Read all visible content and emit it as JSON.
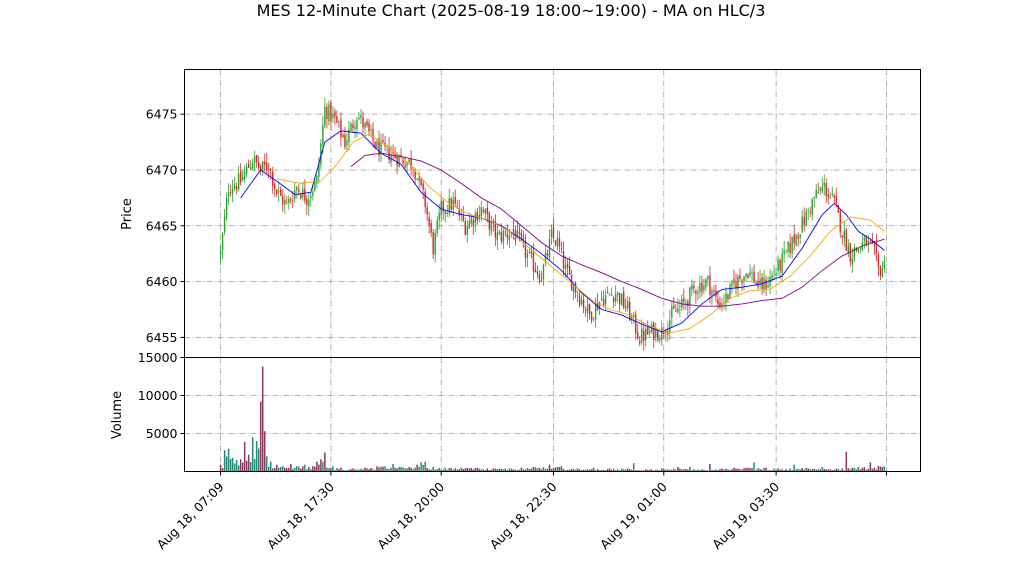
{
  "chart_data": {
    "type": "candlestick",
    "title": "MES 12-Minute Chart (2025-08-19 18:00~19:00) - MA on HLC/3",
    "price_panel": {
      "ylabel": "Price",
      "yticks": [
        6455,
        6460,
        6465,
        6470,
        6475
      ],
      "ylim": [
        6453.2,
        6479.0
      ],
      "up_color": "#2ca02c",
      "down_color": "#d62728",
      "candles_close_path": [
        [
          0,
          6462.5
        ],
        [
          4,
          6468.5
        ],
        [
          10,
          6469.0
        ],
        [
          16,
          6471.0
        ],
        [
          20,
          6470.0
        ],
        [
          24,
          6470.5
        ],
        [
          28,
          6468.0
        ],
        [
          33,
          6466.8
        ],
        [
          38,
          6468.5
        ],
        [
          43,
          6467.5
        ],
        [
          48,
          6469.0
        ],
        [
          52,
          6475.5
        ],
        [
          57,
          6474.5
        ],
        [
          62,
          6472.5
        ],
        [
          68,
          6475.0
        ],
        [
          73,
          6473.5
        ],
        [
          78,
          6472.0
        ],
        [
          84,
          6471.5
        ],
        [
          90,
          6471.0
        ],
        [
          96,
          6470.5
        ],
        [
          102,
          6467.0
        ],
        [
          106,
          6463.0
        ],
        [
          110,
          6466.5
        ],
        [
          116,
          6467.0
        ],
        [
          122,
          6465.0
        ],
        [
          130,
          6466.5
        ],
        [
          138,
          6464.0
        ],
        [
          146,
          6464.5
        ],
        [
          154,
          6462.0
        ],
        [
          160,
          6460.5
        ],
        [
          165,
          6464.0
        ],
        [
          168,
          6463.5
        ],
        [
          172,
          6461.0
        ],
        [
          178,
          6459.0
        ],
        [
          184,
          6457.0
        ],
        [
          190,
          6458.5
        ],
        [
          197,
          6459.0
        ],
        [
          203,
          6457.5
        ],
        [
          209,
          6455.0
        ],
        [
          215,
          6455.5
        ],
        [
          220,
          6455.5
        ],
        [
          225,
          6457.0
        ],
        [
          231,
          6458.0
        ],
        [
          237,
          6459.5
        ],
        [
          243,
          6460.0
        ],
        [
          248,
          6458.0
        ],
        [
          252,
          6458.5
        ],
        [
          257,
          6460.0
        ],
        [
          263,
          6461.0
        ],
        [
          269,
          6459.5
        ],
        [
          273,
          6460.0
        ],
        [
          279,
          6461.5
        ],
        [
          285,
          6463.5
        ],
        [
          291,
          6465.5
        ],
        [
          296,
          6467.5
        ],
        [
          301,
          6468.5
        ],
        [
          306,
          6467.0
        ],
        [
          310,
          6464.5
        ],
        [
          314,
          6462.5
        ],
        [
          318,
          6463.0
        ],
        [
          322,
          6463.5
        ],
        [
          326,
          6462.5
        ],
        [
          328,
          6461.0
        ],
        [
          331,
          6461.5
        ]
      ],
      "moving_averages": [
        {
          "color": "#0000ff",
          "points": [
            [
              10,
              6467.5
            ],
            [
              20,
              6470.0
            ],
            [
              28,
              6469.0
            ],
            [
              37,
              6467.8
            ],
            [
              45,
              6468.0
            ],
            [
              52,
              6472.5
            ],
            [
              60,
              6473.5
            ],
            [
              70,
              6473.3
            ],
            [
              80,
              6471.5
            ],
            [
              90,
              6470.5
            ],
            [
              100,
              6468.0
            ],
            [
              110,
              6466.5
            ],
            [
              120,
              6466.0
            ],
            [
              130,
              6465.7
            ],
            [
              140,
              6465.0
            ],
            [
              150,
              6463.8
            ],
            [
              160,
              6462.5
            ],
            [
              170,
              6461.0
            ],
            [
              180,
              6459.0
            ],
            [
              190,
              6457.5
            ],
            [
              200,
              6457.0
            ],
            [
              210,
              6456.2
            ],
            [
              220,
              6455.5
            ],
            [
              230,
              6456.3
            ],
            [
              240,
              6458.0
            ],
            [
              250,
              6459.3
            ],
            [
              260,
              6459.5
            ],
            [
              270,
              6459.8
            ],
            [
              280,
              6460.5
            ],
            [
              290,
              6463.0
            ],
            [
              300,
              6466.0
            ],
            [
              306,
              6467.0
            ],
            [
              312,
              6466.0
            ],
            [
              318,
              6464.5
            ],
            [
              324,
              6463.8
            ],
            [
              331,
              6462.8
            ]
          ]
        },
        {
          "color": "#ffa500",
          "points": [
            [
              28,
              6469.2
            ],
            [
              40,
              6468.8
            ],
            [
              50,
              6469.0
            ],
            [
              58,
              6470.5
            ],
            [
              66,
              6472.5
            ],
            [
              74,
              6473.2
            ],
            [
              84,
              6472.0
            ],
            [
              94,
              6470.5
            ],
            [
              104,
              6468.5
            ],
            [
              114,
              6467.0
            ],
            [
              124,
              6466.0
            ],
            [
              134,
              6465.5
            ],
            [
              144,
              6464.5
            ],
            [
              154,
              6463.0
            ],
            [
              164,
              6461.5
            ],
            [
              174,
              6460.0
            ],
            [
              184,
              6458.5
            ],
            [
              194,
              6457.5
            ],
            [
              204,
              6457.0
            ],
            [
              214,
              6456.0
            ],
            [
              224,
              6455.4
            ],
            [
              234,
              6455.8
            ],
            [
              244,
              6457.0
            ],
            [
              254,
              6458.5
            ],
            [
              264,
              6459.2
            ],
            [
              274,
              6459.3
            ],
            [
              284,
              6460.5
            ],
            [
              294,
              6462.3
            ],
            [
              304,
              6464.5
            ],
            [
              314,
              6465.8
            ],
            [
              324,
              6465.5
            ],
            [
              331,
              6464.5
            ]
          ]
        },
        {
          "color": "#800080",
          "points": [
            [
              65,
              6470.3
            ],
            [
              72,
              6471.3
            ],
            [
              80,
              6471.5
            ],
            [
              90,
              6471.2
            ],
            [
              100,
              6470.8
            ],
            [
              110,
              6470.0
            ],
            [
              120,
              6468.8
            ],
            [
              130,
              6467.5
            ],
            [
              140,
              6466.5
            ],
            [
              150,
              6465.0
            ],
            [
              160,
              6463.5
            ],
            [
              170,
              6462.3
            ],
            [
              180,
              6461.5
            ],
            [
              190,
              6460.8
            ],
            [
              200,
              6460.0
            ],
            [
              210,
              6459.3
            ],
            [
              220,
              6458.5
            ],
            [
              230,
              6458.0
            ],
            [
              240,
              6457.8
            ],
            [
              250,
              6457.8
            ],
            [
              260,
              6458.0
            ],
            [
              270,
              6458.3
            ],
            [
              280,
              6458.5
            ],
            [
              290,
              6459.5
            ],
            [
              300,
              6461.0
            ],
            [
              310,
              6462.3
            ],
            [
              320,
              6463.2
            ],
            [
              331,
              6463.8
            ]
          ]
        }
      ]
    },
    "volume_panel": {
      "ylabel": "Volume",
      "yticks": [
        5000,
        10000,
        15000
      ],
      "ylim": [
        0,
        15000
      ],
      "bars": [
        [
          0,
          900
        ],
        [
          2,
          2800
        ],
        [
          4,
          3000
        ],
        [
          6,
          1800
        ],
        [
          8,
          1500
        ],
        [
          10,
          1600
        ],
        [
          12,
          3900
        ],
        [
          14,
          2200
        ],
        [
          16,
          4500
        ],
        [
          18,
          4000
        ],
        [
          20,
          9200
        ],
        [
          21,
          13800
        ],
        [
          22,
          5300
        ],
        [
          23,
          2000
        ],
        [
          25,
          1300
        ],
        [
          28,
          900
        ],
        [
          31,
          700
        ],
        [
          35,
          1000
        ],
        [
          38,
          700
        ],
        [
          42,
          900
        ],
        [
          46,
          700
        ],
        [
          48,
          1300
        ],
        [
          50,
          1600
        ],
        [
          52,
          2500
        ],
        [
          56,
          700
        ],
        [
          60,
          500
        ],
        [
          66,
          400
        ],
        [
          72,
          500
        ],
        [
          78,
          700
        ],
        [
          86,
          1000
        ],
        [
          94,
          600
        ],
        [
          98,
          900
        ],
        [
          100,
          1200
        ],
        [
          102,
          1300
        ],
        [
          106,
          600
        ],
        [
          112,
          500
        ],
        [
          120,
          500
        ],
        [
          128,
          500
        ],
        [
          136,
          400
        ],
        [
          144,
          400
        ],
        [
          150,
          500
        ],
        [
          156,
          600
        ],
        [
          164,
          900
        ],
        [
          170,
          700
        ],
        [
          178,
          400
        ],
        [
          186,
          500
        ],
        [
          194,
          400
        ],
        [
          200,
          400
        ],
        [
          206,
          1100
        ],
        [
          212,
          300
        ],
        [
          220,
          400
        ],
        [
          228,
          600
        ],
        [
          234,
          600
        ],
        [
          240,
          300
        ],
        [
          244,
          1000
        ],
        [
          250,
          400
        ],
        [
          256,
          500
        ],
        [
          266,
          1200
        ],
        [
          272,
          500
        ],
        [
          278,
          400
        ],
        [
          286,
          900
        ],
        [
          292,
          500
        ],
        [
          300,
          600
        ],
        [
          310,
          400
        ],
        [
          312,
          2600
        ],
        [
          318,
          600
        ],
        [
          324,
          1200
        ],
        [
          326,
          500
        ],
        [
          328,
          700
        ],
        [
          331,
          700
        ]
      ]
    },
    "x_axis": {
      "tick_labels": [
        "Aug 18, 07:09",
        "Aug 18, 17:30",
        "Aug 18, 20:00",
        "Aug 18, 22:30",
        "Aug 19, 01:00",
        "Aug 19, 03:30"
      ],
      "tick_bar_index": [
        0,
        55,
        110,
        166,
        221,
        277
      ],
      "xlim": [
        -18,
        349
      ],
      "extra_ticks_without_label": [
        332
      ]
    },
    "grid": true
  }
}
